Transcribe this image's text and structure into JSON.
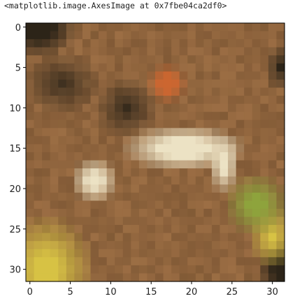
{
  "output": {
    "repr_text": "<matplotlib.image.AxesImage at 0x7fbe04ca2df0>"
  },
  "chart_data": {
    "type": "heatmap",
    "title": "",
    "xlabel": "",
    "ylabel": "",
    "image_size": [
      32,
      32
    ],
    "xlim": [
      -0.5,
      31.5
    ],
    "ylim": [
      31.5,
      -0.5
    ],
    "x_ticks": [
      0,
      5,
      10,
      15,
      20,
      25,
      30
    ],
    "y_ticks": [
      0,
      5,
      10,
      15,
      20,
      25,
      30
    ],
    "x_tick_labels": [
      "0",
      "5",
      "10",
      "15",
      "20",
      "25",
      "30"
    ],
    "y_tick_labels": [
      "0",
      "5",
      "10",
      "15",
      "20",
      "25",
      "30"
    ],
    "grid": false,
    "colors": {
      "background": "#9c6e44",
      "dark_corner": "#2c2418",
      "bright_patch": "#ece2c4",
      "orange_spot": "#cc6630",
      "yellow_corner": "#d7c244",
      "green_patch": "#8ea43c"
    }
  }
}
